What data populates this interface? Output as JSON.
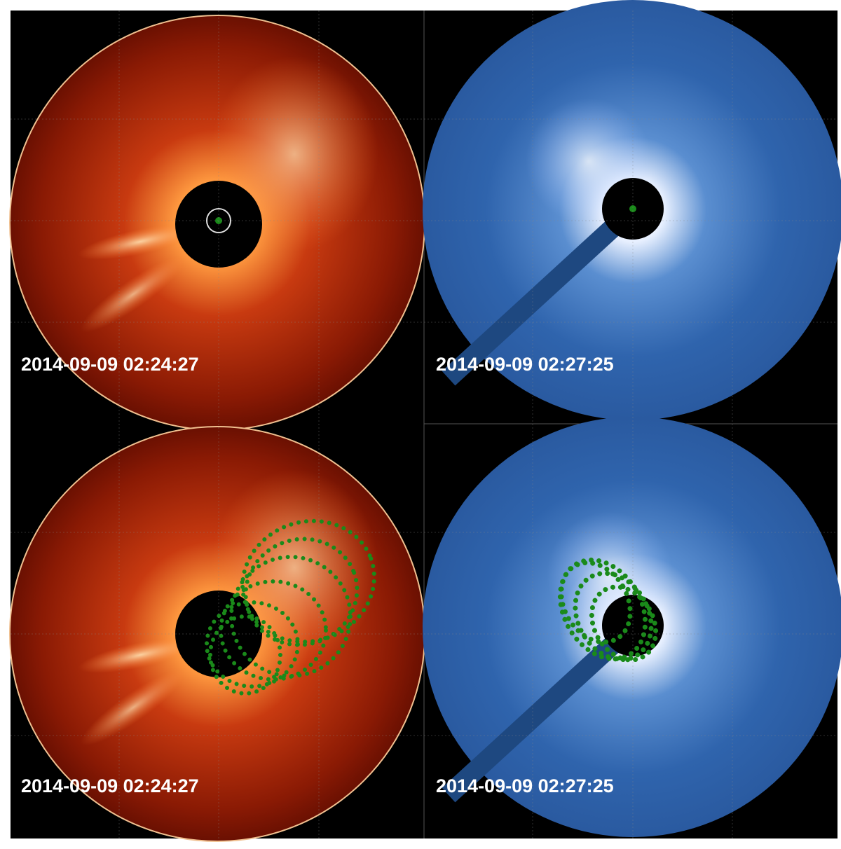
{
  "panels": [
    {
      "timestamp": "2014-09-09 02:24:27"
    },
    {
      "timestamp": "2014-09-09 02:27:25"
    },
    {
      "timestamp": "2014-09-09 02:24:27"
    },
    {
      "timestamp": "2014-09-09 02:27:25"
    }
  ]
}
